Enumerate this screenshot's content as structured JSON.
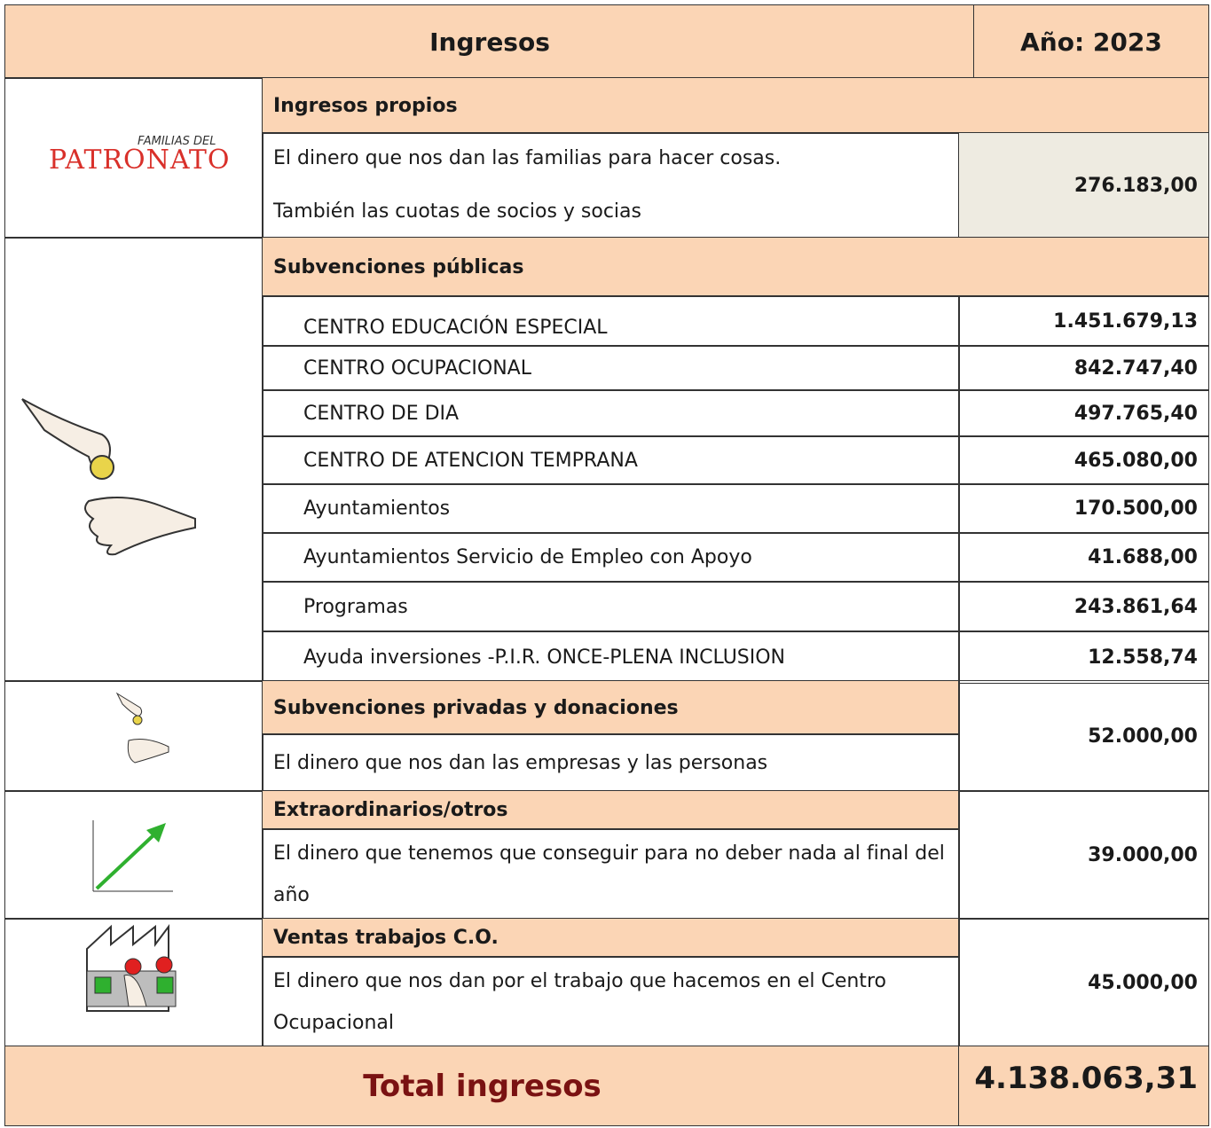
{
  "logo": {
    "small": "FAMILIAS DEL",
    "main": "PATRONATO"
  },
  "header": {
    "title": "Ingresos",
    "year": "Año: 2023"
  },
  "propios": {
    "heading": "Ingresos propios",
    "lines": [
      "El dinero que nos dan las familias para hacer cosas.",
      "También las cuotas de socios y socias"
    ],
    "amount": "276.183,00"
  },
  "publicas": {
    "heading": "Subvenciones públicas",
    "items": [
      [
        "CENTRO EDUCACIÓN ESPECIAL",
        "1.451.679,13"
      ],
      [
        "CENTRO OCUPACIONAL",
        "842.747,40"
      ],
      [
        "CENTRO DE DIA",
        "497.765,40"
      ],
      [
        "CENTRO DE ATENCION TEMPRANA",
        "465.080,00"
      ],
      [
        "Ayuntamientos",
        "170.500,00"
      ],
      [
        "Ayuntamientos Servicio de Empleo con Apoyo",
        "41.688,00"
      ],
      [
        "Programas",
        "243.861,64"
      ],
      [
        "Ayuda inversiones -P.I.R. ONCE-PLENA INCLUSION",
        "12.558,74"
      ]
    ]
  },
  "privadas": {
    "heading": "Subvenciones privadas y donaciones",
    "description": "El dinero que nos dan las empresas y las personas",
    "amount": "52.000,00"
  },
  "extraordinarios": {
    "heading": "Extraordinarios/otros",
    "description": "El dinero que tenemos que conseguir para no deber nada al final del año",
    "amount": "39.000,00"
  },
  "ventas": {
    "heading": "Ventas trabajos C.O.",
    "description": "El dinero que nos dan por el trabajo que hacemos en el Centro Ocupacional",
    "amount": "45.000,00"
  },
  "total": {
    "label": "Total ingresos",
    "amount": "4.138.063,31"
  }
}
